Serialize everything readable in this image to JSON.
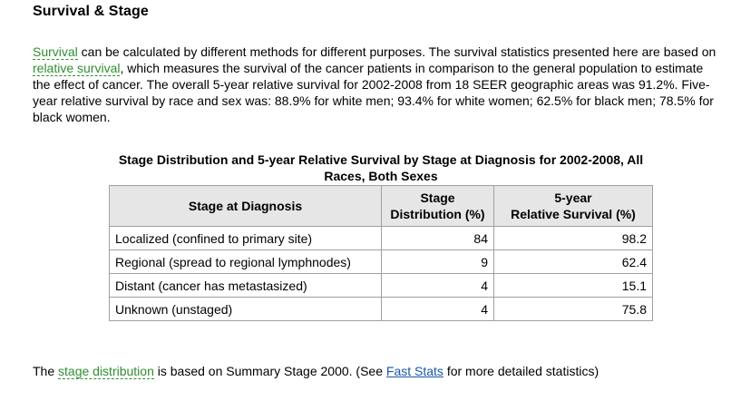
{
  "heading": "Survival & Stage",
  "intro": {
    "term_survival": "Survival",
    "text_1": " can be calculated by different methods for different purposes. The survival statistics presented here are based on ",
    "term_relative_survival": "relative survival",
    "text_2": ", which measures the survival of the cancer patients in comparison to the general population to estimate the effect of cancer. The overall 5-year relative survival for 2002-2008 from 18 SEER geographic areas was 91.2%. Five-year relative survival by race and sex was: 88.9% for white men; 93.4% for white women; 62.5% for black men; 78.5% for black women."
  },
  "table": {
    "caption": "Stage Distribution and 5-year Relative Survival by Stage at Diagnosis for 2002-2008, All Races, Both Sexes",
    "headers": {
      "stage": "Stage at Diagnosis",
      "distribution_line1": "Stage",
      "distribution_line2": "Distribution (%)",
      "survival_line1": "5-year",
      "survival_line2": "Relative Survival (%)"
    },
    "rows": [
      {
        "stage": "Localized (confined to primary site)",
        "distribution": "84",
        "survival": "98.2"
      },
      {
        "stage": "Regional (spread to regional lymphnodes)",
        "distribution": "9",
        "survival": "62.4"
      },
      {
        "stage": "Distant (cancer has metastasized)",
        "distribution": "4",
        "survival": "15.1"
      },
      {
        "stage": "Unknown (unstaged)",
        "distribution": "4",
        "survival": "75.8"
      }
    ]
  },
  "footer": {
    "text_1": "The ",
    "term_stage_distribution": "stage distribution",
    "text_2": " is based on Summary Stage 2000. (See ",
    "link_fast_stats": "Fast Stats",
    "text_3": " for more detailed statistics)"
  },
  "colors": {
    "glossary_term": "#2f8f2f",
    "link": "#1a56a8",
    "table_header_bg": "#e6e6e6",
    "table_border": "#a0a0a0"
  }
}
